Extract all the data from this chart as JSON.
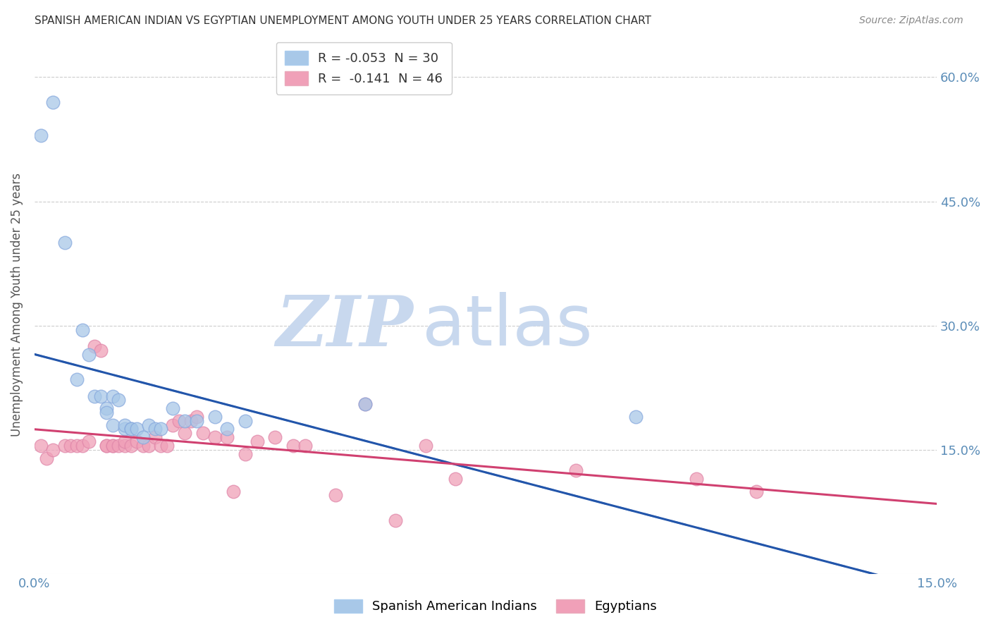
{
  "title": "SPANISH AMERICAN INDIAN VS EGYPTIAN UNEMPLOYMENT AMONG YOUTH UNDER 25 YEARS CORRELATION CHART",
  "source": "Source: ZipAtlas.com",
  "ylabel": "Unemployment Among Youth under 25 years",
  "xmin": 0.0,
  "xmax": 0.15,
  "ymin": 0.0,
  "ymax": 0.65,
  "yticks": [
    0.0,
    0.15,
    0.3,
    0.45,
    0.6
  ],
  "ytick_labels": [
    "",
    "15.0%",
    "30.0%",
    "45.0%",
    "60.0%"
  ],
  "xticks": [
    0.0,
    0.025,
    0.05,
    0.075,
    0.1,
    0.125,
    0.15
  ],
  "xtick_labels": [
    "0.0%",
    "",
    "",
    "",
    "",
    "",
    "15.0%"
  ],
  "legend_val1": "-0.053",
  "legend_Nval1": "30",
  "legend_val2": "-0.141",
  "legend_Nval2": "46",
  "blue_color": "#A8C8E8",
  "pink_color": "#F0A0B8",
  "blue_line_color": "#2255AA",
  "pink_line_color": "#D04070",
  "blue_dash_color": "#88AADD",
  "watermark_zip": "ZIP",
  "watermark_atlas": "atlas",
  "watermark_color_zip": "#C8D8EE",
  "watermark_color_atlas": "#C8D8EE",
  "background_color": "#FFFFFF",
  "grid_color": "#CCCCCC",
  "blue_x": [
    0.001,
    0.003,
    0.005,
    0.007,
    0.008,
    0.009,
    0.01,
    0.011,
    0.012,
    0.012,
    0.013,
    0.013,
    0.014,
    0.015,
    0.015,
    0.016,
    0.016,
    0.017,
    0.018,
    0.019,
    0.02,
    0.021,
    0.023,
    0.025,
    0.027,
    0.03,
    0.032,
    0.035,
    0.055,
    0.1
  ],
  "blue_y": [
    0.53,
    0.57,
    0.4,
    0.235,
    0.295,
    0.265,
    0.215,
    0.215,
    0.2,
    0.195,
    0.18,
    0.215,
    0.21,
    0.175,
    0.18,
    0.175,
    0.175,
    0.175,
    0.165,
    0.18,
    0.175,
    0.175,
    0.2,
    0.185,
    0.185,
    0.19,
    0.175,
    0.185,
    0.205,
    0.19
  ],
  "pink_x": [
    0.001,
    0.002,
    0.003,
    0.005,
    0.006,
    0.007,
    0.008,
    0.009,
    0.01,
    0.011,
    0.012,
    0.012,
    0.013,
    0.013,
    0.014,
    0.015,
    0.015,
    0.016,
    0.017,
    0.018,
    0.019,
    0.02,
    0.021,
    0.022,
    0.023,
    0.024,
    0.025,
    0.026,
    0.027,
    0.028,
    0.03,
    0.032,
    0.033,
    0.035,
    0.037,
    0.04,
    0.043,
    0.045,
    0.05,
    0.055,
    0.06,
    0.065,
    0.07,
    0.09,
    0.11,
    0.12
  ],
  "pink_y": [
    0.155,
    0.14,
    0.15,
    0.155,
    0.155,
    0.155,
    0.155,
    0.16,
    0.275,
    0.27,
    0.155,
    0.155,
    0.155,
    0.155,
    0.155,
    0.155,
    0.16,
    0.155,
    0.16,
    0.155,
    0.155,
    0.165,
    0.155,
    0.155,
    0.18,
    0.185,
    0.17,
    0.185,
    0.19,
    0.17,
    0.165,
    0.165,
    0.1,
    0.145,
    0.16,
    0.165,
    0.155,
    0.155,
    0.095,
    0.205,
    0.065,
    0.155,
    0.115,
    0.125,
    0.115,
    0.1
  ]
}
